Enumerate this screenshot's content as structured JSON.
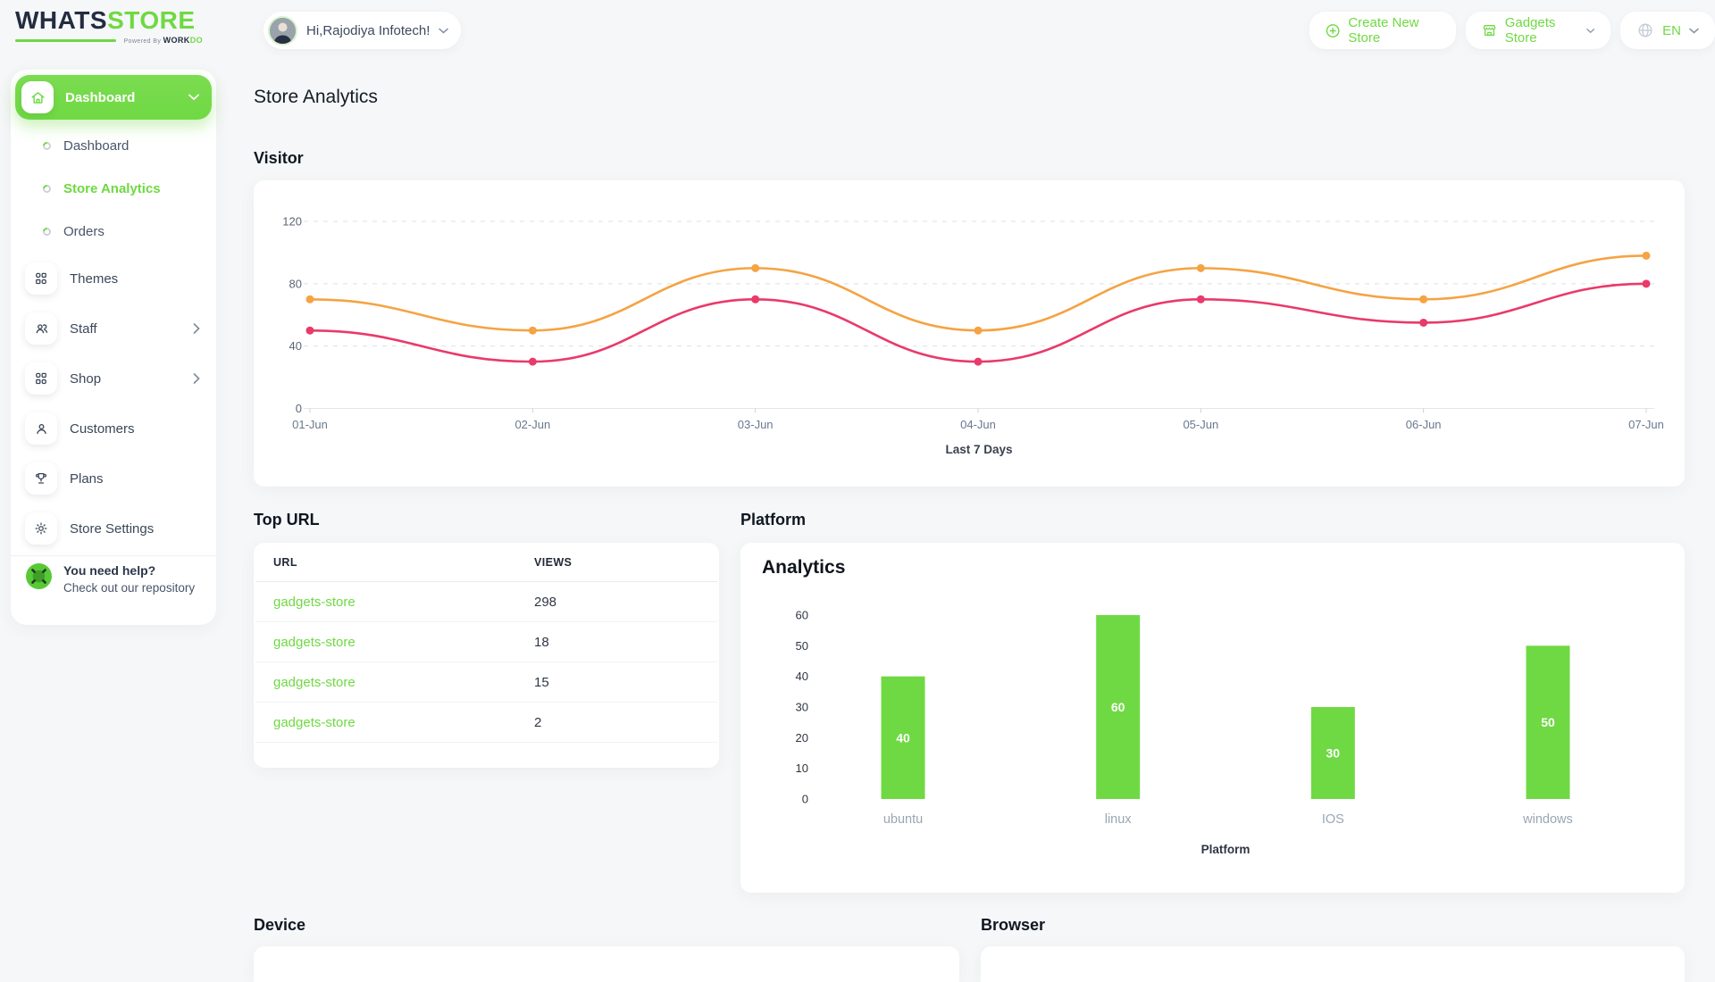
{
  "brand": {
    "word1": "WHATS",
    "word2": "STORE",
    "powered_prefix": "Powered By ",
    "powered_word1": "WORK",
    "powered_word2": "DO"
  },
  "header": {
    "greeting": "Hi,Rajodiya Infotech!",
    "create_store_label": "Create New Store",
    "store_name": "Gadgets Store",
    "language": "EN"
  },
  "sidebar": {
    "group_label": "Dashboard",
    "subitems": [
      {
        "label": "Dashboard"
      },
      {
        "label": "Store Analytics"
      },
      {
        "label": "Orders"
      }
    ],
    "items": [
      {
        "label": "Themes"
      },
      {
        "label": "Staff"
      },
      {
        "label": "Shop"
      },
      {
        "label": "Customers"
      },
      {
        "label": "Plans"
      },
      {
        "label": "Store Settings"
      }
    ],
    "help_title": "You need help?",
    "help_subtitle": "Check out our repository"
  },
  "page_title": "Store Analytics",
  "visitor_section": {
    "heading": "Visitor"
  },
  "top_url_section": {
    "heading": "Top URL",
    "columns": [
      "URL",
      "VIEWS"
    ],
    "rows": [
      {
        "url": "gadgets-store",
        "views": "298"
      },
      {
        "url": "gadgets-store",
        "views": "18"
      },
      {
        "url": "gadgets-store",
        "views": "15"
      },
      {
        "url": "gadgets-store",
        "views": "2"
      }
    ]
  },
  "platform_section": {
    "heading": "Platform",
    "chart_title": "Analytics"
  },
  "device_section": {
    "heading": "Device"
  },
  "browser_section": {
    "heading": "Browser"
  },
  "colors": {
    "accent_green": "#6fd943",
    "line_orange": "#f5a343",
    "line_pink": "#e93a6a",
    "bar_green": "#6fd943"
  },
  "chart_data": [
    {
      "type": "line",
      "title": "Visitor",
      "x": [
        "01-Jun",
        "02-Jun",
        "03-Jun",
        "04-Jun",
        "05-Jun",
        "06-Jun",
        "07-Jun"
      ],
      "series": [
        {
          "name": "series-orange",
          "color": "#f5a343",
          "values": [
            70,
            50,
            90,
            50,
            90,
            70,
            98
          ]
        },
        {
          "name": "series-pink",
          "color": "#e93a6a",
          "values": [
            50,
            30,
            70,
            30,
            70,
            55,
            80
          ]
        }
      ],
      "xlabel": "Last 7 Days",
      "ylim": [
        0,
        120
      ],
      "yticks": [
        0,
        40,
        80,
        120
      ],
      "grid": "horizontal-dashed",
      "legend": "none"
    },
    {
      "type": "bar",
      "title": "Analytics",
      "categories": [
        "ubuntu",
        "linux",
        "IOS",
        "windows"
      ],
      "values": [
        40,
        60,
        30,
        50
      ],
      "xlabel": "Platform",
      "ylim": [
        0,
        60
      ],
      "yticks": [
        0,
        10,
        20,
        30,
        40,
        50,
        60
      ],
      "bar_color": "#6fd943",
      "value_label_color": "#ffffff",
      "legend": "none"
    }
  ]
}
